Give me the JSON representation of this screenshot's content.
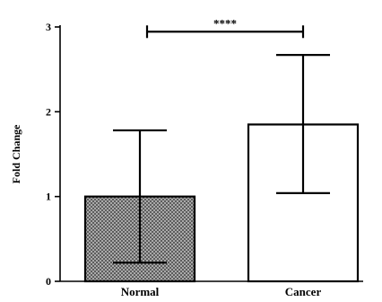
{
  "chart_data": {
    "type": "bar",
    "title": "",
    "xlabel": "",
    "ylabel": "Fold Change",
    "ylim": [
      0,
      3
    ],
    "yticks": [
      0,
      1,
      2,
      3
    ],
    "ytick_labels": [
      "0",
      "1",
      "2",
      "3"
    ],
    "grid": false,
    "categories": [
      "Normal",
      "Cancer"
    ],
    "values": [
      1.0,
      1.85
    ],
    "error_lower": [
      0.22,
      1.04
    ],
    "error_upper": [
      1.78,
      2.67
    ],
    "bar_fills": [
      "crosshatch-gray",
      "white"
    ],
    "significance": {
      "from": "Normal",
      "to": "Cancer",
      "y": 3.05,
      "label": "****"
    }
  }
}
